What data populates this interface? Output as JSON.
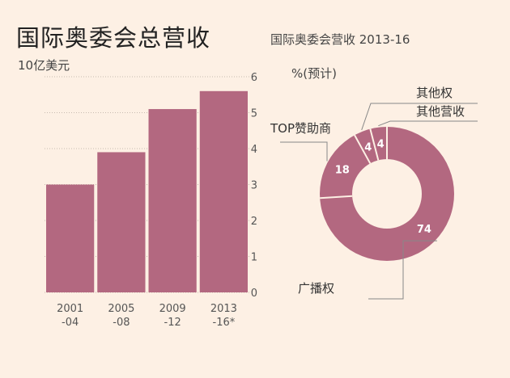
{
  "header": {
    "title": "国际奥委会总营收",
    "unit": "10亿美元"
  },
  "chart_data": [
    {
      "type": "bar",
      "title": "国际奥委会总营收",
      "ylabel": "10亿美元",
      "categories": [
        [
          "2001",
          "-04"
        ],
        [
          "2005",
          "-08"
        ],
        [
          "2009",
          "-12"
        ],
        [
          "2013",
          "-16*"
        ]
      ],
      "values": [
        3.0,
        3.9,
        5.1,
        5.6
      ],
      "ylim": [
        0,
        6
      ],
      "yticks": [
        "0",
        "1",
        "2",
        "3",
        "4",
        "5",
        "6"
      ],
      "grid": true,
      "color": "#b36880"
    },
    {
      "type": "pie",
      "title": "国际奥委会营收 2013-16",
      "subtitle": "%(预计)",
      "labels": [
        "广播权",
        "TOP赞助商",
        "其他权",
        "其他营收"
      ],
      "values": [
        74,
        18,
        4,
        4
      ],
      "display_values": [
        "74",
        "18",
        "4",
        "4"
      ],
      "color": "#b36880"
    }
  ]
}
